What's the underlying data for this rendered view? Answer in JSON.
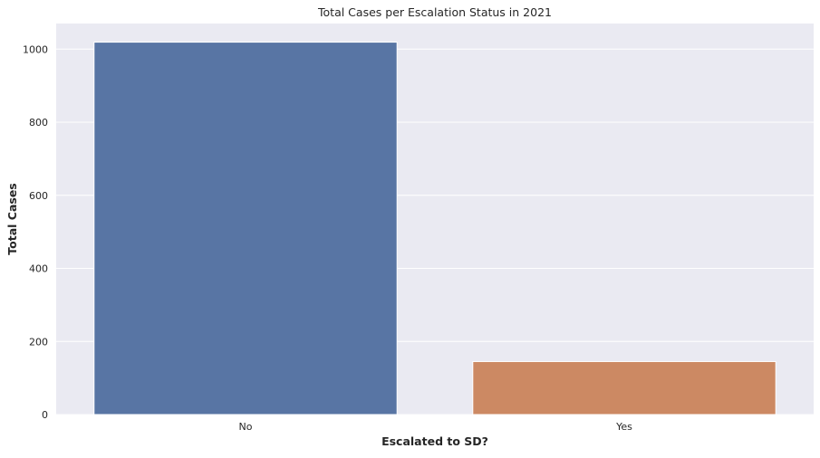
{
  "chart_data": {
    "type": "bar",
    "title": "Total Cases per Escalation Status in 2021",
    "xlabel": "Escalated to SD?",
    "ylabel": "Total Cases",
    "categories": [
      "No",
      "Yes"
    ],
    "values": [
      1019,
      145
    ],
    "ylim": [
      0,
      1070
    ],
    "yticks": [
      0,
      200,
      400,
      600,
      800,
      1000
    ],
    "ytick_labels": [
      "0",
      "200",
      "400",
      "600",
      "800",
      "1000"
    ],
    "grid": true,
    "colors": {
      "plot_background": "#eaeaf2",
      "grid": "#ffffff",
      "bars": [
        "#5875a4",
        "#cc8963"
      ]
    }
  }
}
